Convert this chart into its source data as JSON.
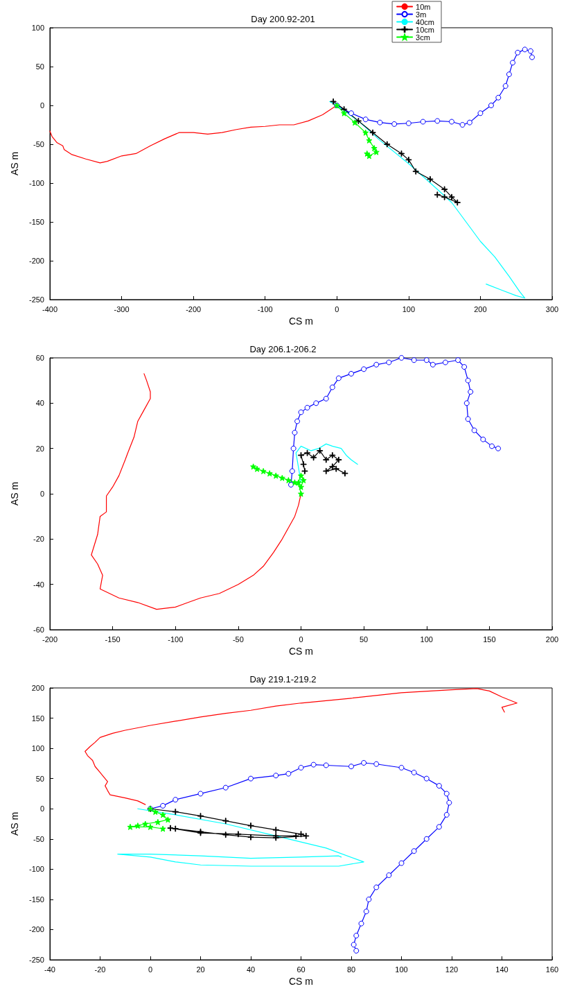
{
  "chart_data": [
    {
      "type": "line",
      "title": "Day 200.92-201",
      "xlabel": "CS m",
      "ylabel": "AS m",
      "xlim": [
        -400,
        300
      ],
      "xticks": [
        -400,
        -300,
        -200,
        -100,
        0,
        100,
        200,
        300
      ],
      "ylim": [
        -250,
        100
      ],
      "yticks": [
        -250,
        -200,
        -150,
        -100,
        -50,
        0,
        50,
        100
      ],
      "grid": false,
      "legend": "top right",
      "series": [
        {
          "name": "10m",
          "color": "#ff0000",
          "marker": "none",
          "x": [
            0,
            -5,
            -20,
            -40,
            -60,
            -80,
            -100,
            -120,
            -140,
            -160,
            -180,
            -200,
            -220,
            -240,
            -260,
            -280,
            -300,
            -320,
            -330,
            -350,
            -370,
            -380,
            -382,
            -390,
            -397,
            -400
          ],
          "values": [
            0,
            -3,
            -12,
            -20,
            -25,
            -25,
            -27,
            -28,
            -31,
            -35,
            -37,
            -35,
            -35,
            -43,
            -52,
            -62,
            -65,
            -72,
            -74,
            -69,
            -63,
            -57,
            -52,
            -48,
            -40,
            -33
          ]
        },
        {
          "name": "3m",
          "color": "#0000ff",
          "marker": "circle",
          "x": [
            0,
            20,
            40,
            60,
            80,
            100,
            120,
            140,
            160,
            175,
            185,
            200,
            215,
            225,
            235,
            240,
            245,
            252,
            262,
            270,
            272
          ],
          "values": [
            0,
            -10,
            -18,
            -22,
            -24,
            -23,
            -21,
            -20,
            -21,
            -25,
            -22,
            -10,
            0,
            10,
            25,
            40,
            55,
            68,
            72,
            70,
            62
          ]
        },
        {
          "name": "40cm",
          "color": "#00ffff",
          "marker": "none",
          "x": [
            -10,
            0,
            30,
            60,
            100,
            140,
            160,
            180,
            200,
            220,
            240,
            255,
            262,
            250,
            230,
            208
          ],
          "values": [
            5,
            0,
            -20,
            -45,
            -75,
            -108,
            -125,
            -150,
            -175,
            -195,
            -220,
            -240,
            -248,
            -245,
            -238,
            -230
          ]
        },
        {
          "name": "10cm",
          "color": "#000000",
          "marker": "cross",
          "x": [
            -5,
            10,
            30,
            50,
            70,
            90,
            100,
            110,
            130,
            150,
            160,
            168,
            150,
            140
          ],
          "values": [
            5,
            -5,
            -20,
            -35,
            -50,
            -62,
            -70,
            -85,
            -95,
            -108,
            -118,
            -125,
            -118,
            -115
          ]
        },
        {
          "name": "3cm",
          "color": "#00ff00",
          "marker": "star",
          "x": [
            0,
            10,
            25,
            40,
            45,
            52,
            55,
            45,
            42
          ],
          "values": [
            0,
            -10,
            -22,
            -35,
            -45,
            -55,
            -60,
            -65,
            -62
          ]
        }
      ]
    },
    {
      "type": "line",
      "title": "Day 206.1-206.2",
      "xlabel": "CS m",
      "ylabel": "AS m",
      "xlim": [
        -200,
        200
      ],
      "xticks": [
        -200,
        -150,
        -100,
        -50,
        0,
        50,
        100,
        150,
        200
      ],
      "ylim": [
        -60,
        60
      ],
      "yticks": [
        -60,
        -40,
        -20,
        0,
        20,
        40,
        60
      ],
      "grid": false,
      "legend": false,
      "series": [
        {
          "color": "#ff0000",
          "marker": "none",
          "x": [
            0,
            -2,
            -5,
            -10,
            -15,
            -22,
            -30,
            -38,
            -50,
            -65,
            -80,
            -90,
            -100,
            -115,
            -130,
            -145,
            -160,
            -158,
            -162,
            -167,
            -162,
            -160,
            -155,
            -155,
            -150,
            -145,
            -140,
            -138,
            -133,
            -130,
            -125,
            -120,
            -120,
            -123,
            -125
          ],
          "values": [
            0,
            -5,
            -10,
            -15,
            -20,
            -26,
            -32,
            -36,
            -40,
            -44,
            -46,
            -48,
            -50,
            -51,
            -48,
            -46,
            -42,
            -36,
            -31,
            -27,
            -18,
            -10,
            -8,
            -1,
            3,
            8,
            15,
            18,
            25,
            32,
            37,
            42,
            45,
            50,
            53
          ]
        },
        {
          "color": "#0000ff",
          "marker": "circle",
          "x": [
            -8,
            -7,
            -6,
            -5,
            -3,
            0,
            5,
            12,
            20,
            25,
            30,
            40,
            50,
            60,
            70,
            80,
            90,
            100,
            105,
            115,
            125,
            130,
            133,
            135,
            132,
            133,
            138,
            145,
            152,
            157
          ],
          "values": [
            4,
            10,
            20,
            27,
            32,
            36,
            38,
            40,
            42,
            47,
            51,
            53,
            55,
            57,
            58,
            60,
            59,
            59,
            57,
            58,
            59,
            56,
            50,
            45,
            40,
            33,
            28,
            24,
            21,
            20
          ]
        },
        {
          "color": "#00ffff",
          "marker": "none",
          "x": [
            0,
            -4,
            0,
            8,
            14,
            20,
            25,
            32,
            36,
            40,
            45
          ],
          "values": [
            5,
            18,
            21,
            19,
            20,
            22,
            21,
            20,
            17,
            15,
            13
          ]
        },
        {
          "color": "#000000",
          "marker": "cross",
          "x": [
            3,
            2,
            0,
            5,
            10,
            15,
            20,
            25,
            30,
            25,
            20,
            28,
            35
          ],
          "values": [
            10,
            13,
            17,
            18,
            16,
            19,
            15,
            17,
            15,
            12,
            10,
            11,
            9
          ]
        },
        {
          "color": "#00ff00",
          "marker": "star",
          "x": [
            0,
            -2,
            0,
            2,
            0,
            -5,
            -10,
            -15,
            -20,
            -25,
            -30,
            -35,
            -38
          ],
          "values": [
            0,
            5,
            8,
            6,
            3,
            5,
            6,
            7,
            8,
            9,
            10,
            11,
            12
          ]
        }
      ]
    },
    {
      "type": "line",
      "title": "Day 219.1-219.2",
      "xlabel": "CS m",
      "ylabel": "AS m",
      "xlim": [
        -40,
        160
      ],
      "xticks": [
        -40,
        -20,
        0,
        20,
        40,
        60,
        80,
        100,
        120,
        140,
        160
      ],
      "ylim": [
        -250,
        200
      ],
      "yticks": [
        -250,
        -200,
        -150,
        -100,
        -50,
        0,
        50,
        100,
        150,
        200
      ],
      "grid": false,
      "legend": false,
      "series": [
        {
          "color": "#ff0000",
          "marker": "none",
          "x": [
            -2,
            -5,
            -10,
            -16,
            -17,
            -18,
            -17,
            -19,
            -20,
            -22,
            -23,
            -25,
            -26,
            -24,
            -22,
            -20,
            -15,
            -10,
            0,
            10,
            20,
            30,
            40,
            50,
            60,
            80,
            100,
            120,
            130,
            135,
            140,
            146,
            140,
            141
          ],
          "values": [
            7,
            13,
            18,
            23,
            30,
            38,
            45,
            55,
            60,
            70,
            80,
            88,
            95,
            103,
            110,
            118,
            125,
            130,
            138,
            145,
            152,
            158,
            163,
            170,
            175,
            183,
            192,
            197,
            199,
            195,
            185,
            175,
            168,
            160
          ]
        },
        {
          "color": "#0000ff",
          "marker": "circle",
          "x": [
            0,
            5,
            10,
            20,
            30,
            40,
            50,
            55,
            60,
            65,
            70,
            80,
            85,
            90,
            100,
            105,
            110,
            115,
            118,
            119,
            118,
            115,
            110,
            105,
            100,
            95,
            90,
            87,
            86,
            84,
            82,
            81,
            82
          ],
          "values": [
            0,
            5,
            15,
            25,
            35,
            50,
            55,
            58,
            68,
            73,
            72,
            70,
            76,
            74,
            68,
            60,
            50,
            38,
            25,
            10,
            -10,
            -30,
            -50,
            -70,
            -90,
            -110,
            -130,
            -150,
            -170,
            -190,
            -210,
            -225,
            -235
          ]
        },
        {
          "color": "#00ffff",
          "marker": "none",
          "x": [
            -5,
            10,
            30,
            50,
            70,
            85,
            75,
            60,
            40,
            20,
            10,
            0,
            -13,
            0,
            20,
            40,
            60,
            75,
            76
          ],
          "values": [
            0,
            -10,
            -25,
            -45,
            -65,
            -88,
            -95,
            -95,
            -95,
            -93,
            -88,
            -80,
            -75,
            -75,
            -78,
            -82,
            -80,
            -78,
            -80
          ]
        },
        {
          "color": "#000000",
          "marker": "cross",
          "x": [
            0,
            10,
            20,
            30,
            40,
            50,
            60,
            62,
            50,
            40,
            30,
            20,
            10,
            8,
            20,
            35,
            50,
            58
          ],
          "values": [
            0,
            -5,
            -12,
            -20,
            -28,
            -35,
            -42,
            -45,
            -48,
            -47,
            -43,
            -38,
            -33,
            -32,
            -40,
            -42,
            -45,
            -45
          ]
        },
        {
          "color": "#00ff00",
          "marker": "star",
          "x": [
            0,
            2,
            5,
            7,
            3,
            -2,
            -5,
            -8,
            0,
            5
          ],
          "values": [
            0,
            -5,
            -10,
            -18,
            -22,
            -25,
            -28,
            -30,
            -30,
            -33
          ]
        }
      ]
    }
  ]
}
